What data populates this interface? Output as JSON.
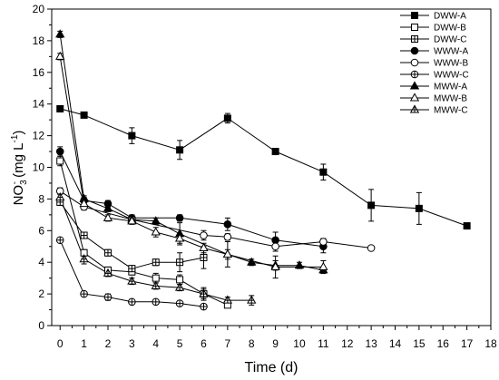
{
  "chart_data": {
    "type": "line",
    "xlabel": "Time (d)",
    "ylabel": [
      {
        "text": "NO",
        "shift": "none"
      },
      {
        "text": "3",
        "shift": "sub"
      },
      {
        "text": "-",
        "shift": "sup"
      },
      {
        "text": " (mg L",
        "shift": "none"
      },
      {
        "text": "-1",
        "shift": "sup"
      },
      {
        "text": ")",
        "shift": "none"
      }
    ],
    "xlim": [
      -0.35,
      18
    ],
    "ylim": [
      0,
      20
    ],
    "xticks": [
      0,
      1,
      2,
      3,
      4,
      5,
      6,
      7,
      8,
      9,
      10,
      11,
      12,
      13,
      14,
      15,
      16,
      17,
      18
    ],
    "yticks": [
      0,
      2,
      4,
      6,
      8,
      10,
      12,
      14,
      16,
      18,
      20
    ],
    "grid": false,
    "legend_position": "top-right",
    "series": [
      {
        "name": "DWW-A",
        "marker": "filled-square",
        "color": "#000000",
        "x": [
          0,
          1,
          3,
          5,
          7,
          9,
          11,
          13,
          15,
          17
        ],
        "y": [
          13.7,
          13.3,
          12.0,
          11.1,
          13.1,
          11.0,
          9.7,
          7.6,
          7.4,
          6.3
        ],
        "error": [
          0.2,
          0.1,
          0.5,
          0.6,
          0.3,
          0.1,
          0.5,
          1.0,
          1.0,
          0.1
        ]
      },
      {
        "name": "DWW-B",
        "marker": "open-square",
        "color": "#000000",
        "x": [
          0,
          1,
          2,
          3,
          4,
          5,
          6,
          7
        ],
        "y": [
          10.4,
          4.6,
          3.5,
          3.4,
          3.0,
          2.9,
          2.0,
          1.3
        ],
        "error": [
          0.3,
          0.2,
          0.2,
          0.2,
          0.3,
          0.3,
          0.4,
          0.1
        ]
      },
      {
        "name": "DWW-C",
        "marker": "crossed-square",
        "color": "#000000",
        "x": [
          0,
          1,
          2,
          3,
          4,
          5,
          6
        ],
        "y": [
          7.8,
          5.7,
          4.6,
          3.6,
          4.0,
          4.0,
          4.3
        ],
        "error": [
          0.2,
          0.2,
          0.2,
          0.2,
          0.2,
          0.6,
          0.7
        ]
      },
      {
        "name": "WWW-A",
        "marker": "filled-circle",
        "color": "#000000",
        "x": [
          0,
          1,
          2,
          3,
          5,
          7,
          9,
          11
        ],
        "y": [
          11.0,
          7.9,
          7.7,
          6.8,
          6.8,
          6.4,
          5.4,
          5.0
        ],
        "error": [
          0.3,
          0.2,
          0.2,
          0.2,
          0.2,
          0.4,
          0.5,
          0.4
        ]
      },
      {
        "name": "WWW-B",
        "marker": "open-circle",
        "color": "#000000",
        "x": [
          0,
          1,
          3,
          6,
          7,
          9,
          11,
          13
        ],
        "y": [
          8.5,
          7.5,
          6.7,
          5.7,
          5.6,
          5.0,
          5.3,
          4.9
        ],
        "error": [
          0.2,
          0.2,
          0.2,
          0.3,
          0.2,
          0.3,
          0.2,
          0.1
        ]
      },
      {
        "name": "WWW-C",
        "marker": "crossed-circle",
        "color": "#000000",
        "x": [
          0,
          1,
          2,
          3,
          4,
          5,
          6
        ],
        "y": [
          5.4,
          2.0,
          1.8,
          1.5,
          1.5,
          1.4,
          1.2
        ],
        "error": [
          0.1,
          0.1,
          0.2,
          0.1,
          0.1,
          0.1,
          0.1
        ]
      },
      {
        "name": "MWW-A",
        "marker": "filled-triangle",
        "color": "#000000",
        "x": [
          0,
          1,
          2,
          3,
          4,
          5,
          7,
          8,
          9,
          10,
          11
        ],
        "y": [
          18.4,
          8.0,
          7.4,
          6.7,
          6.6,
          5.8,
          4.5,
          4.0,
          3.8,
          3.8,
          3.5
        ],
        "error": [
          0.2,
          0.2,
          0.2,
          0.2,
          0.2,
          0.7,
          0.3,
          0.2,
          0.3,
          0.2,
          0.2
        ]
      },
      {
        "name": "MWW-B",
        "marker": "open-triangle",
        "color": "#000000",
        "x": [
          0,
          1,
          2,
          3,
          4,
          5,
          6,
          7,
          9,
          11
        ],
        "y": [
          17.0,
          7.7,
          6.8,
          6.6,
          5.9,
          5.5,
          4.9,
          4.5,
          3.7,
          3.7
        ],
        "error": [
          0.2,
          0.2,
          0.2,
          0.2,
          0.3,
          0.3,
          0.3,
          0.8,
          0.7,
          0.4
        ]
      },
      {
        "name": "MWW-C",
        "marker": "crossed-triangle",
        "color": "#000000",
        "x": [
          0,
          1,
          2,
          3,
          4,
          5,
          6,
          7,
          8
        ],
        "y": [
          8.1,
          4.2,
          3.3,
          2.8,
          2.5,
          2.4,
          2.0,
          1.6,
          1.6
        ],
        "error": [
          0.2,
          0.3,
          0.2,
          0.2,
          0.2,
          0.2,
          0.3,
          0.2,
          0.3
        ]
      }
    ]
  }
}
